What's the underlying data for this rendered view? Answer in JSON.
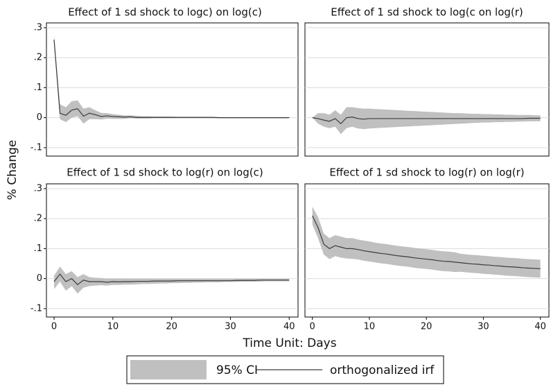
{
  "figure": {
    "ylabel": "% Change",
    "xlabel": "Time Unit: Days",
    "xlim": [
      -1.3,
      41.5
    ],
    "xticks": [
      0,
      10,
      20,
      30,
      40
    ],
    "ylim": [
      -0.128,
      0.316
    ],
    "yticks": [
      {
        "value": -0.1,
        "label": "-.1"
      },
      0,
      {
        "value": 0.1,
        "label": ".1"
      },
      {
        "value": 0.2,
        "label": ".2"
      },
      {
        "value": 0.3,
        "label": ".3"
      }
    ],
    "grid": true,
    "x": [
      0,
      1,
      2,
      3,
      4,
      5,
      6,
      7,
      8,
      9,
      10,
      11,
      12,
      13,
      14,
      15,
      16,
      17,
      18,
      19,
      20,
      21,
      22,
      23,
      24,
      25,
      26,
      27,
      28,
      29,
      30,
      31,
      32,
      33,
      34,
      35,
      36,
      37,
      38,
      39,
      40
    ],
    "legend": [
      {
        "name": "95% CI",
        "color": "#c0c0c0"
      },
      {
        "name": "orthogonalized irf",
        "color": "#3a3a3a"
      }
    ]
  },
  "chart_data": [
    {
      "type": "line",
      "title": "Effect of 1 sd shock to logc) on log(c)",
      "values": [
        0.26,
        0.015,
        0.008,
        0.025,
        0.03,
        0.005,
        0.015,
        0.01,
        0.004,
        0.006,
        0.004,
        0.003,
        0.002,
        0.003,
        0.001,
        0.001,
        0.001,
        0.001,
        0.001,
        0.001,
        0.001,
        0.001,
        0.001,
        0.001,
        0.001,
        0.001,
        0.001,
        0.001,
        0,
        0,
        0,
        0,
        0,
        0,
        0,
        0,
        0,
        0,
        0,
        0,
        0
      ],
      "upper": [
        0.275,
        0.045,
        0.035,
        0.055,
        0.058,
        0.03,
        0.035,
        0.025,
        0.016,
        0.015,
        0.012,
        0.01,
        0.008,
        0.008,
        0.006,
        0.005,
        0.005,
        0.004,
        0.004,
        0.004,
        0.004,
        0.003,
        0.003,
        0.003,
        0.003,
        0.003,
        0.003,
        0.003,
        0.002,
        0.002,
        0.002,
        0.002,
        0.002,
        0.002,
        0.002,
        0.002,
        0.002,
        0.002,
        0.002,
        0.002,
        0.002
      ],
      "lower": [
        0.245,
        -0.005,
        -0.015,
        0,
        0.005,
        -0.02,
        -0.005,
        -0.005,
        -0.006,
        -0.003,
        -0.004,
        -0.004,
        -0.004,
        -0.002,
        -0.003,
        -0.003,
        -0.003,
        -0.002,
        -0.002,
        -0.002,
        -0.002,
        -0.002,
        -0.002,
        -0.002,
        -0.002,
        -0.002,
        -0.002,
        -0.002,
        -0.002,
        -0.002,
        -0.002,
        -0.002,
        -0.002,
        -0.002,
        -0.002,
        -0.002,
        -0.002,
        -0.002,
        -0.002,
        -0.002,
        -0.002
      ]
    },
    {
      "type": "line",
      "title": "Effect of 1 sd shock to log(c on log(r)",
      "values": [
        0,
        -0.003,
        -0.008,
        -0.012,
        -0.003,
        -0.02,
        0,
        0.002,
        -0.003,
        -0.005,
        -0.003,
        -0.003,
        -0.003,
        -0.003,
        -0.003,
        -0.003,
        -0.003,
        -0.003,
        -0.003,
        -0.003,
        -0.003,
        -0.003,
        -0.003,
        -0.003,
        -0.003,
        -0.003,
        -0.003,
        -0.003,
        -0.003,
        -0.003,
        -0.003,
        -0.003,
        -0.003,
        -0.003,
        -0.003,
        -0.003,
        -0.003,
        -0.003,
        -0.002,
        -0.002,
        -0.002
      ],
      "upper": [
        0,
        0.015,
        0.015,
        0.01,
        0.025,
        0.01,
        0.035,
        0.035,
        0.032,
        0.03,
        0.03,
        0.029,
        0.028,
        0.027,
        0.026,
        0.025,
        0.024,
        0.023,
        0.022,
        0.021,
        0.02,
        0.019,
        0.018,
        0.017,
        0.016,
        0.015,
        0.015,
        0.014,
        0.013,
        0.013,
        0.012,
        0.012,
        0.011,
        0.011,
        0.01,
        0.01,
        0.009,
        0.009,
        0.009,
        0.008,
        0.008
      ],
      "lower": [
        0,
        -0.02,
        -0.03,
        -0.035,
        -0.03,
        -0.055,
        -0.035,
        -0.03,
        -0.036,
        -0.038,
        -0.036,
        -0.035,
        -0.034,
        -0.033,
        -0.032,
        -0.031,
        -0.03,
        -0.029,
        -0.028,
        -0.027,
        -0.026,
        -0.025,
        -0.024,
        -0.023,
        -0.022,
        -0.021,
        -0.02,
        -0.019,
        -0.018,
        -0.017,
        -0.016,
        -0.016,
        -0.015,
        -0.015,
        -0.014,
        -0.014,
        -0.013,
        -0.013,
        -0.012,
        -0.012,
        -0.012
      ]
    },
    {
      "type": "line",
      "title": "Effect of 1 sd shock to log(r) on log(c)",
      "values": [
        -0.01,
        0.015,
        -0.01,
        0,
        -0.02,
        -0.005,
        -0.01,
        -0.01,
        -0.01,
        -0.012,
        -0.01,
        -0.011,
        -0.01,
        -0.01,
        -0.009,
        -0.009,
        -0.009,
        -0.008,
        -0.008,
        -0.008,
        -0.008,
        -0.007,
        -0.007,
        -0.007,
        -0.007,
        -0.007,
        -0.007,
        -0.007,
        -0.007,
        -0.007,
        -0.007,
        -0.006,
        -0.006,
        -0.006,
        -0.006,
        -0.005,
        -0.005,
        -0.005,
        -0.005,
        -0.005,
        -0.005
      ],
      "upper": [
        0.01,
        0.04,
        0.015,
        0.025,
        0.005,
        0.015,
        0.005,
        0.003,
        0.002,
        0,
        0,
        0,
        0,
        0,
        0,
        0,
        0,
        0,
        0,
        0,
        0,
        0,
        0,
        0,
        0,
        0,
        0,
        0,
        0,
        0,
        0,
        0,
        0,
        0,
        0,
        0,
        0,
        0,
        0,
        0,
        0
      ],
      "lower": [
        -0.035,
        -0.01,
        -0.04,
        -0.025,
        -0.05,
        -0.03,
        -0.025,
        -0.023,
        -0.022,
        -0.023,
        -0.021,
        -0.021,
        -0.02,
        -0.02,
        -0.019,
        -0.018,
        -0.018,
        -0.017,
        -0.016,
        -0.016,
        -0.015,
        -0.015,
        -0.014,
        -0.014,
        -0.013,
        -0.013,
        -0.012,
        -0.012,
        -0.012,
        -0.011,
        -0.011,
        -0.011,
        -0.01,
        -0.01,
        -0.01,
        -0.01,
        -0.009,
        -0.009,
        -0.009,
        -0.009,
        -0.009
      ]
    },
    {
      "type": "line",
      "title": "Effect of 1 sd shock to log(r) on log(r)",
      "values": [
        0.21,
        0.17,
        0.115,
        0.1,
        0.11,
        0.105,
        0.1,
        0.1,
        0.097,
        0.093,
        0.09,
        0.087,
        0.084,
        0.082,
        0.079,
        0.076,
        0.074,
        0.072,
        0.069,
        0.067,
        0.065,
        0.063,
        0.06,
        0.058,
        0.057,
        0.055,
        0.053,
        0.051,
        0.049,
        0.048,
        0.046,
        0.045,
        0.043,
        0.042,
        0.04,
        0.039,
        0.038,
        0.036,
        0.035,
        0.034,
        0.033
      ],
      "upper": [
        0.24,
        0.205,
        0.15,
        0.135,
        0.145,
        0.14,
        0.135,
        0.135,
        0.13,
        0.127,
        0.124,
        0.12,
        0.117,
        0.115,
        0.112,
        0.109,
        0.107,
        0.105,
        0.102,
        0.1,
        0.098,
        0.096,
        0.093,
        0.091,
        0.09,
        0.088,
        0.083,
        0.081,
        0.079,
        0.078,
        0.076,
        0.075,
        0.073,
        0.072,
        0.07,
        0.069,
        0.068,
        0.066,
        0.065,
        0.064,
        0.063
      ],
      "lower": [
        0.18,
        0.135,
        0.08,
        0.065,
        0.075,
        0.07,
        0.067,
        0.066,
        0.064,
        0.06,
        0.057,
        0.054,
        0.051,
        0.049,
        0.046,
        0.043,
        0.041,
        0.039,
        0.036,
        0.034,
        0.032,
        0.03,
        0.027,
        0.025,
        0.024,
        0.022,
        0.023,
        0.021,
        0.019,
        0.018,
        0.016,
        0.015,
        0.013,
        0.012,
        0.01,
        0.009,
        0.008,
        0.006,
        0.005,
        0.004,
        0.003
      ]
    }
  ]
}
